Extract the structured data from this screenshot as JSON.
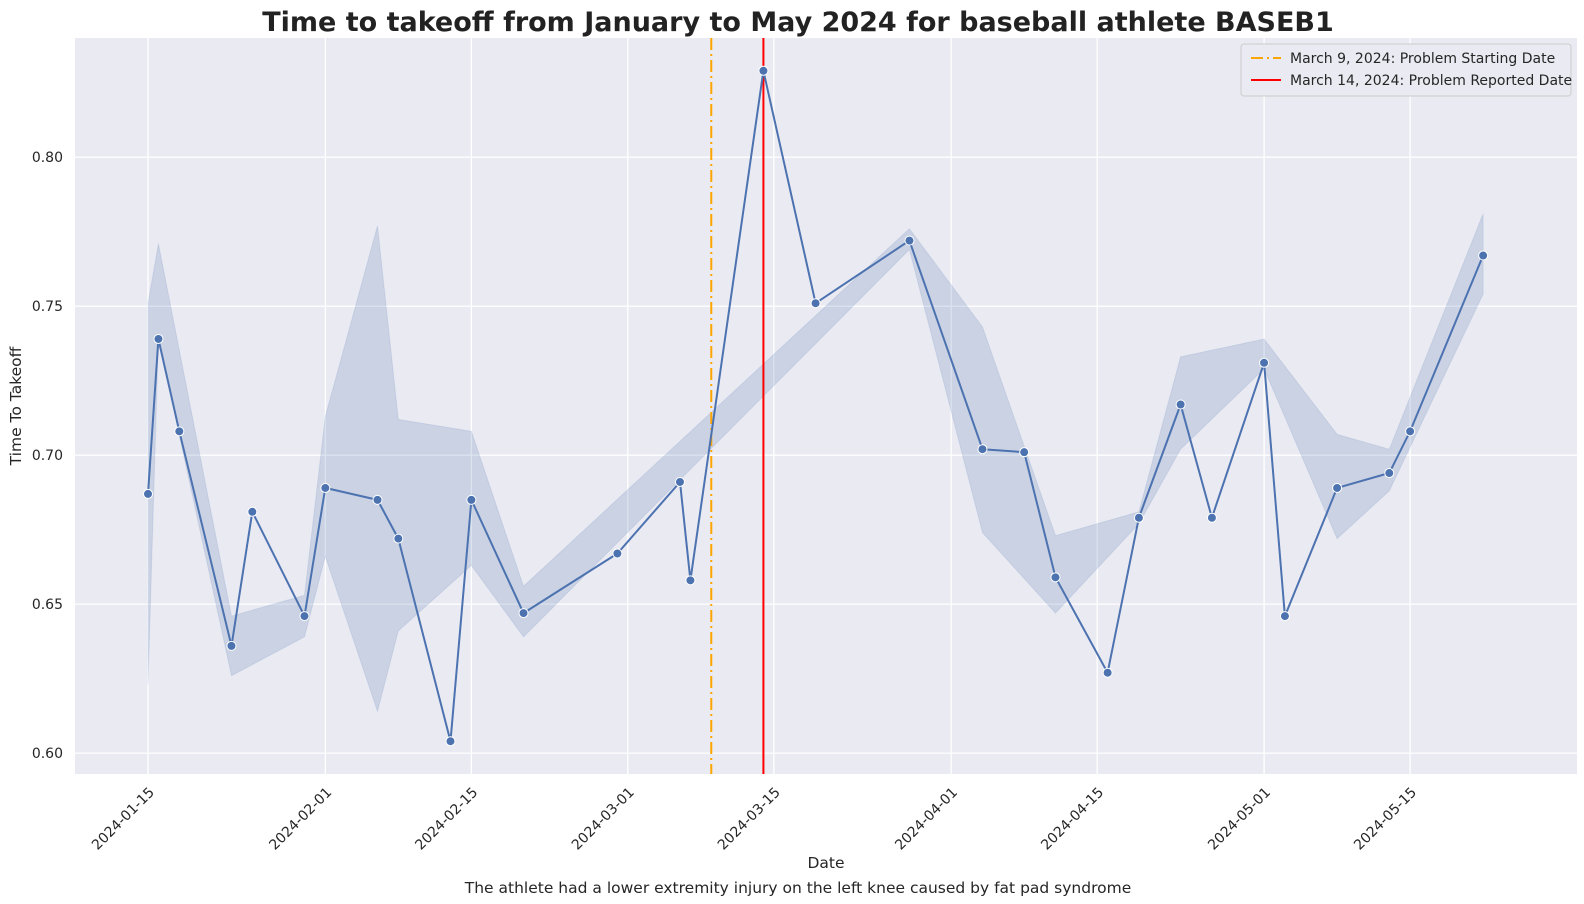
{
  "chart_data": {
    "type": "line",
    "title": "Time to takeoff from January to May 2024 for baseball athlete BASEB1",
    "xlabel": "Date",
    "ylabel": "Time To Takeoff",
    "caption": "The athlete had a lower extremity injury on the left knee caused by fat pad syndrome",
    "x_ticks": [
      "2024-01-15",
      "2024-02-01",
      "2024-02-15",
      "2024-03-01",
      "2024-03-15",
      "2024-04-01",
      "2024-04-15",
      "2024-05-01",
      "2024-05-15"
    ],
    "y_ticks": [
      "0.60",
      "0.65",
      "0.70",
      "0.75",
      "0.80"
    ],
    "xlim": [
      "2024-01-08",
      "2024-05-31"
    ],
    "ylim": [
      0.593,
      0.84
    ],
    "grid": true,
    "legend_position": "top-right",
    "colors": {
      "background": "#eaeaf2",
      "grid": "#ffffff",
      "series": "#4c72b0",
      "band": "#4c72b0",
      "problem_start": "#ffa500",
      "problem_reported": "#ff0000"
    },
    "series": [
      {
        "x": [
          "2024-01-15",
          "2024-01-16",
          "2024-01-18",
          "2024-01-23",
          "2024-01-25",
          "2024-01-30",
          "2024-02-01",
          "2024-02-06",
          "2024-02-08",
          "2024-02-13",
          "2024-02-15",
          "2024-02-20",
          "2024-02-29",
          "2024-03-06",
          "2024-03-07",
          "2024-03-14",
          "2024-03-19",
          "2024-03-28",
          "2024-04-04",
          "2024-04-08",
          "2024-04-11",
          "2024-04-16",
          "2024-04-19",
          "2024-04-23",
          "2024-04-26",
          "2024-05-01",
          "2024-05-03",
          "2024-05-08",
          "2024-05-13",
          "2024-05-15",
          "2024-05-22"
        ],
        "y": [
          0.687,
          0.739,
          0.708,
          0.636,
          0.681,
          0.646,
          0.689,
          0.685,
          0.672,
          0.604,
          0.685,
          0.647,
          0.667,
          0.691,
          0.658,
          0.829,
          0.751,
          0.772,
          0.702,
          0.701,
          0.659,
          0.627,
          0.679,
          0.717,
          0.679,
          0.731,
          0.646,
          0.689,
          0.694,
          0.708,
          0.767
        ]
      }
    ],
    "confidence_band": {
      "x": [
        "2024-01-15",
        "2024-01-16",
        "2024-01-23",
        "2024-01-30",
        "2024-02-01",
        "2024-02-06",
        "2024-02-08",
        "2024-02-15",
        "2024-02-20",
        "2024-03-28",
        "2024-04-04",
        "2024-04-11",
        "2024-04-19",
        "2024-04-23",
        "2024-05-01",
        "2024-05-08",
        "2024-05-13",
        "2024-05-22"
      ],
      "lower": [
        0.623,
        0.739,
        0.626,
        0.639,
        0.666,
        0.614,
        0.641,
        0.663,
        0.639,
        0.769,
        0.674,
        0.647,
        0.677,
        0.702,
        0.729,
        0.672,
        0.688,
        0.754
      ],
      "upper": [
        0.751,
        0.771,
        0.646,
        0.653,
        0.713,
        0.777,
        0.712,
        0.708,
        0.656,
        0.776,
        0.743,
        0.673,
        0.681,
        0.733,
        0.739,
        0.707,
        0.702,
        0.781
      ]
    },
    "reference_lines": [
      {
        "label": "March 9, 2024: Problem Starting Date",
        "x": "2024-03-09",
        "style": "dashdot",
        "color": "#ffa500"
      },
      {
        "label": "March 14, 2024: Problem Reported Date",
        "x": "2024-03-14",
        "style": "solid",
        "color": "#ff0000"
      }
    ]
  }
}
